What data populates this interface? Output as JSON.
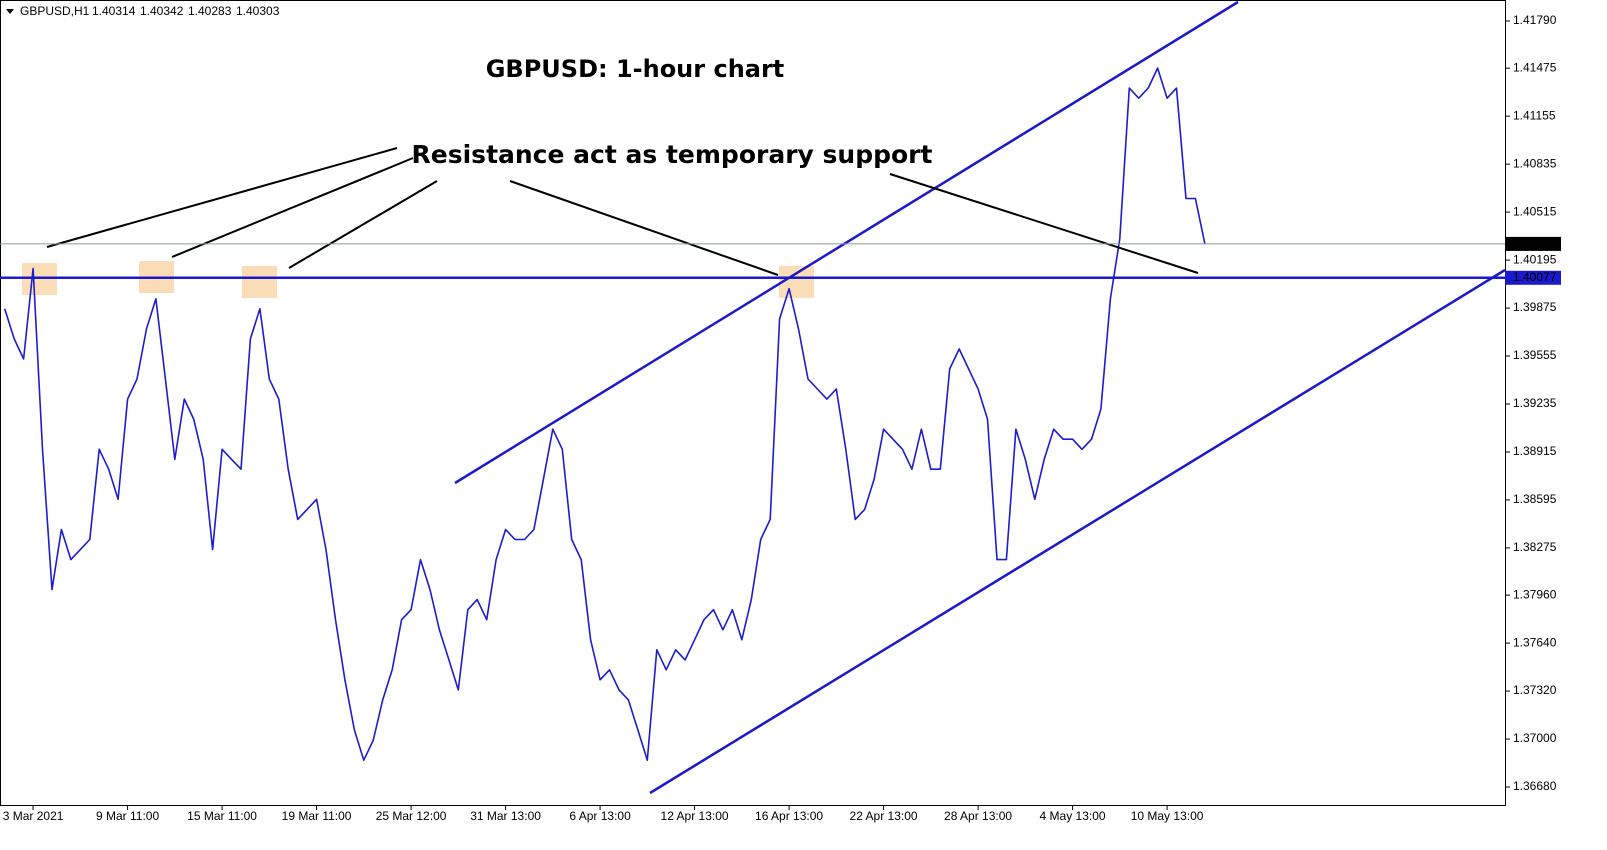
{
  "chart_data": {
    "type": "line",
    "symbol": "GBPUSD,H1",
    "ohlc": [
      1.40314,
      1.40342,
      1.40283,
      1.40303
    ],
    "title": "GBPUSD: 1-hour chart",
    "annotation": "Resistance act as temporary support",
    "price_line": 1.40303,
    "level_line": 1.40077,
    "color": "#1c1cd0",
    "categories": [
      null,
      null,
      null,
      "3 Mar 2021",
      null,
      null,
      null,
      null,
      null,
      null,
      null,
      null,
      null,
      "9 Mar 11:00",
      null,
      null,
      null,
      null,
      null,
      null,
      null,
      null,
      null,
      "15 Mar 11:00",
      null,
      null,
      null,
      null,
      null,
      null,
      null,
      null,
      null,
      "19 Mar 11:00",
      null,
      null,
      null,
      null,
      null,
      null,
      null,
      null,
      null,
      "25 Mar 12:00",
      null,
      null,
      null,
      null,
      null,
      null,
      null,
      null,
      null,
      "31 Mar 13:00",
      null,
      null,
      null,
      null,
      null,
      null,
      null,
      null,
      null,
      "6 Apr 13:00",
      null,
      null,
      null,
      null,
      null,
      null,
      null,
      null,
      null,
      "12 Apr 13:00",
      null,
      null,
      null,
      null,
      null,
      null,
      null,
      null,
      null,
      "16 Apr 13:00",
      null,
      null,
      null,
      null,
      null,
      null,
      null,
      null,
      null,
      "22 Apr 13:00",
      null,
      null,
      null,
      null,
      null,
      null,
      null,
      null,
      null,
      "28 Apr 13:00",
      null,
      null,
      null,
      null,
      null,
      null,
      null,
      null,
      null,
      "4 May 13:00",
      null,
      null,
      null,
      null,
      null,
      null,
      null,
      null,
      null,
      "10 May 13:00",
      null,
      null,
      null,
      null
    ],
    "values": [
      1.3987,
      1.39669,
      1.39536,
      1.40138,
      1.38933,
      1.37997,
      1.38398,
      1.38197,
      1.38264,
      1.38331,
      1.38933,
      1.388,
      1.38599,
      1.39268,
      1.39402,
      1.39736,
      1.39937,
      1.39402,
      1.38866,
      1.39268,
      1.39134,
      1.38866,
      1.38264,
      1.38933,
      1.38866,
      1.388,
      1.39669,
      1.3987,
      1.39402,
      1.39268,
      1.388,
      1.38465,
      1.38532,
      1.38599,
      1.38264,
      1.37796,
      1.37395,
      1.3706,
      1.36859,
      1.36993,
      1.37261,
      1.37462,
      1.37796,
      1.37863,
      1.38197,
      1.37997,
      1.37729,
      1.37528,
      1.37328,
      1.37863,
      1.3793,
      1.37796,
      1.38197,
      1.38398,
      1.38331,
      1.38331,
      1.38398,
      1.38733,
      1.39067,
      1.38933,
      1.38331,
      1.38197,
      1.37662,
      1.37395,
      1.37462,
      1.37328,
      1.37261,
      1.3706,
      1.36859,
      1.37595,
      1.37462,
      1.37595,
      1.37528,
      1.37662,
      1.37796,
      1.37863,
      1.37729,
      1.37863,
      1.37662,
      1.3793,
      1.38331,
      1.38465,
      1.39803,
      1.40004,
      1.39736,
      1.39402,
      1.39335,
      1.39268,
      1.39335,
      1.38933,
      1.38465,
      1.38532,
      1.38733,
      1.39067,
      1.39,
      1.38933,
      1.388,
      1.39067,
      1.388,
      1.388,
      1.39469,
      1.39602,
      1.39469,
      1.39335,
      1.39134,
      1.38197,
      1.38197,
      1.39067,
      1.38866,
      1.38599,
      1.38866,
      1.39067,
      1.39,
      1.39,
      1.38933,
      1.39,
      1.39201,
      1.39937,
      1.40338,
      1.41342,
      1.41275,
      1.41342,
      1.41476,
      1.41275,
      1.41342,
      1.40606,
      1.40606,
      1.40303
    ],
    "ylim": [
      1.3656,
      1.4193
    ],
    "yticks": [
      {
        "value": 1.4179,
        "label": "1.41790"
      },
      1.41475,
      1.41155,
      1.40835,
      1.40515,
      1.40195,
      1.39875,
      1.39555,
      1.39235,
      1.38915,
      1.38595,
      1.38275,
      {
        "value": 1.3796,
        "label": "1.37960"
      },
      {
        "value": 1.3764,
        "label": "1.37640"
      },
      {
        "value": 1.3732,
        "label": "1.37320"
      },
      {
        "value": 1.37,
        "label": "1.37000"
      },
      {
        "value": 1.3668,
        "label": "1.36680"
      }
    ]
  }
}
